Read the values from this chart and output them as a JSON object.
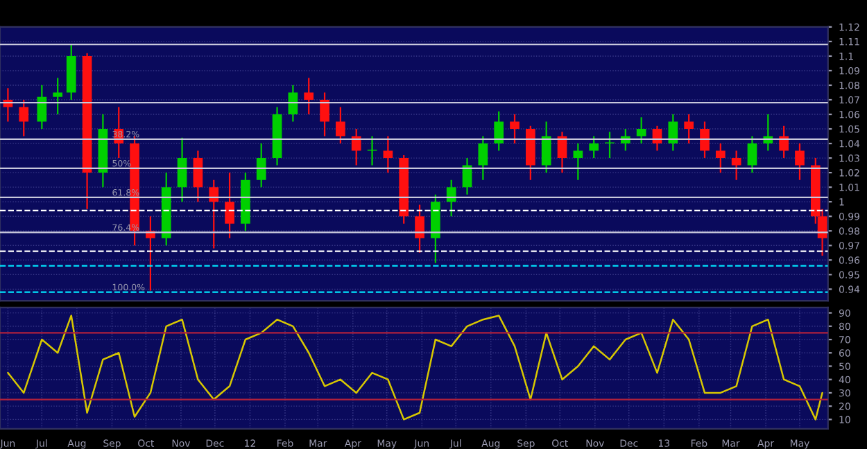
{
  "chart_data": [
    {
      "type": "candlestick",
      "x": [
        "2011-06-01",
        "2011-06-15",
        "2011-07-01",
        "2011-07-15",
        "2011-07-27",
        "2011-08-10",
        "2011-08-24",
        "2011-09-07",
        "2011-09-21",
        "2011-10-05",
        "2011-10-19",
        "2011-11-02",
        "2011-11-16",
        "2011-11-30",
        "2011-12-14",
        "2011-12-28",
        "2012-01-11",
        "2012-01-25",
        "2012-02-08",
        "2012-02-22",
        "2012-03-07",
        "2012-03-21",
        "2012-04-04",
        "2012-04-18",
        "2012-05-02",
        "2012-05-16",
        "2012-05-30",
        "2012-06-13",
        "2012-06-27",
        "2012-07-11",
        "2012-07-25",
        "2012-08-08",
        "2012-08-22",
        "2012-09-05",
        "2012-09-19",
        "2012-10-03",
        "2012-10-17",
        "2012-10-31",
        "2012-11-14",
        "2012-11-28",
        "2012-12-12",
        "2012-12-26",
        "2013-01-09",
        "2013-01-23",
        "2013-02-06",
        "2013-02-20",
        "2013-03-06",
        "2013-03-20",
        "2013-04-03",
        "2013-04-17",
        "2013-05-01",
        "2013-05-15",
        "2013-05-21"
      ],
      "ohlc": [
        [
          1.07,
          1.078,
          1.055,
          1.065
        ],
        [
          1.065,
          1.07,
          1.045,
          1.055
        ],
        [
          1.055,
          1.08,
          1.05,
          1.072
        ],
        [
          1.072,
          1.085,
          1.06,
          1.075
        ],
        [
          1.075,
          1.108,
          1.07,
          1.1
        ],
        [
          1.1,
          1.102,
          0.995,
          1.02
        ],
        [
          1.02,
          1.06,
          1.01,
          1.05
        ],
        [
          1.05,
          1.065,
          1.03,
          1.04
        ],
        [
          1.04,
          1.045,
          0.97,
          0.98
        ],
        [
          0.98,
          0.99,
          0.939,
          0.975
        ],
        [
          0.975,
          1.02,
          0.97,
          1.01
        ],
        [
          1.01,
          1.044,
          1.0,
          1.03
        ],
        [
          1.03,
          1.035,
          1.0,
          1.01
        ],
        [
          1.01,
          1.015,
          0.968,
          1.0
        ],
        [
          1.0,
          1.02,
          0.975,
          0.985
        ],
        [
          0.985,
          1.02,
          0.98,
          1.015
        ],
        [
          1.015,
          1.04,
          1.01,
          1.03
        ],
        [
          1.03,
          1.065,
          1.025,
          1.06
        ],
        [
          1.06,
          1.08,
          1.055,
          1.075
        ],
        [
          1.075,
          1.085,
          1.06,
          1.07
        ],
        [
          1.07,
          1.075,
          1.045,
          1.055
        ],
        [
          1.055,
          1.065,
          1.04,
          1.045
        ],
        [
          1.045,
          1.05,
          1.025,
          1.035
        ],
        [
          1.035,
          1.045,
          1.025,
          1.035
        ],
        [
          1.035,
          1.045,
          1.02,
          1.03
        ],
        [
          1.03,
          1.032,
          0.985,
          0.99
        ],
        [
          0.99,
          0.998,
          0.965,
          0.975
        ],
        [
          0.975,
          1.005,
          0.958,
          1.0
        ],
        [
          1.0,
          1.015,
          0.99,
          1.01
        ],
        [
          1.01,
          1.03,
          1.005,
          1.025
        ],
        [
          1.025,
          1.045,
          1.015,
          1.04
        ],
        [
          1.04,
          1.062,
          1.035,
          1.055
        ],
        [
          1.055,
          1.06,
          1.04,
          1.05
        ],
        [
          1.05,
          1.052,
          1.015,
          1.025
        ],
        [
          1.025,
          1.055,
          1.02,
          1.045
        ],
        [
          1.045,
          1.048,
          1.02,
          1.03
        ],
        [
          1.03,
          1.04,
          1.015,
          1.035
        ],
        [
          1.035,
          1.045,
          1.03,
          1.04
        ],
        [
          1.04,
          1.048,
          1.03,
          1.04
        ],
        [
          1.04,
          1.05,
          1.035,
          1.045
        ],
        [
          1.045,
          1.058,
          1.04,
          1.05
        ],
        [
          1.05,
          1.052,
          1.035,
          1.04
        ],
        [
          1.04,
          1.06,
          1.035,
          1.055
        ],
        [
          1.055,
          1.06,
          1.04,
          1.05
        ],
        [
          1.05,
          1.055,
          1.03,
          1.035
        ],
        [
          1.035,
          1.04,
          1.02,
          1.03
        ],
        [
          1.03,
          1.035,
          1.015,
          1.025
        ],
        [
          1.025,
          1.045,
          1.02,
          1.04
        ],
        [
          1.04,
          1.06,
          1.035,
          1.045
        ],
        [
          1.045,
          1.052,
          1.03,
          1.035
        ],
        [
          1.035,
          1.04,
          1.015,
          1.025
        ],
        [
          1.025,
          1.03,
          0.985,
          0.99
        ],
        [
          0.99,
          0.995,
          0.963,
          0.975
        ]
      ],
      "xlim": [
        "2011-05-25",
        "2013-05-26"
      ],
      "ylim": [
        0.932,
        1.12
      ],
      "yticks": [
        0.94,
        0.95,
        0.96,
        0.97,
        0.98,
        0.99,
        1,
        1.01,
        1.02,
        1.03,
        1.04,
        1.05,
        1.06,
        1.07,
        1.08,
        1.09,
        1.1,
        1.11,
        1.12
      ],
      "tick_labels": "y",
      "grid": true,
      "ref_lines": [
        {
          "axis": "y",
          "value": 1.108,
          "color": "#c8c8dc",
          "line_style": "solid"
        },
        {
          "axis": "y",
          "value": 1.068,
          "color": "#c8c8dc",
          "line_style": "solid"
        },
        {
          "axis": "y",
          "value": 1.043,
          "color": "#c8c8dc",
          "line_style": "solid"
        },
        {
          "axis": "y",
          "value": 1.023,
          "color": "#c8c8dc",
          "line_style": "solid"
        },
        {
          "axis": "y",
          "value": 1.003,
          "color": "#c8c8dc",
          "line_style": "solid"
        },
        {
          "axis": "y",
          "value": 0.979,
          "color": "#c8c8dc",
          "line_style": "solid"
        },
        {
          "axis": "y",
          "value": 0.994,
          "color": "#ffffff",
          "line_style": "dashed"
        },
        {
          "axis": "y",
          "value": 0.966,
          "color": "#ffffff",
          "line_style": "dashed"
        },
        {
          "axis": "y",
          "value": 0.956,
          "color": "#00e5ff",
          "line_style": "dashed"
        },
        {
          "axis": "y",
          "value": 0.938,
          "color": "#00e5ff",
          "line_style": "dashed"
        }
      ],
      "annotations": [
        {
          "text": "38.2%",
          "x": "2011-09-01",
          "y": 1.043
        },
        {
          "text": "50%",
          "x": "2011-09-01",
          "y": 1.023
        },
        {
          "text": "61.8%",
          "x": "2011-09-01",
          "y": 1.003
        },
        {
          "text": "76.4%",
          "x": "2011-09-01",
          "y": 0.979
        },
        {
          "text": "100.0%",
          "x": "2011-09-01",
          "y": 0.938
        }
      ]
    },
    {
      "type": "line",
      "series": [
        {
          "color": "#d8c800",
          "x": [
            "2011-06-01",
            "2011-06-15",
            "2011-07-01",
            "2011-07-15",
            "2011-07-27",
            "2011-08-10",
            "2011-08-24",
            "2011-09-07",
            "2011-09-21",
            "2011-10-05",
            "2011-10-19",
            "2011-11-02",
            "2011-11-16",
            "2011-11-30",
            "2011-12-14",
            "2011-12-28",
            "2012-01-11",
            "2012-01-25",
            "2012-02-08",
            "2012-02-22",
            "2012-03-07",
            "2012-03-21",
            "2012-04-04",
            "2012-04-18",
            "2012-05-02",
            "2012-05-16",
            "2012-05-30",
            "2012-06-13",
            "2012-06-27",
            "2012-07-11",
            "2012-07-25",
            "2012-08-08",
            "2012-08-22",
            "2012-09-05",
            "2012-09-19",
            "2012-10-03",
            "2012-10-17",
            "2012-10-31",
            "2012-11-14",
            "2012-11-28",
            "2012-12-12",
            "2012-12-26",
            "2013-01-09",
            "2013-01-23",
            "2013-02-06",
            "2013-02-20",
            "2013-03-06",
            "2013-03-20",
            "2013-04-03",
            "2013-04-17",
            "2013-05-01",
            "2013-05-15",
            "2013-05-21"
          ],
          "values": [
            45,
            30,
            70,
            60,
            88,
            15,
            55,
            60,
            12,
            30,
            80,
            85,
            40,
            25,
            35,
            70,
            75,
            85,
            80,
            60,
            35,
            40,
            30,
            45,
            40,
            10,
            15,
            70,
            65,
            80,
            85,
            88,
            65,
            25,
            75,
            40,
            50,
            65,
            55,
            70,
            75,
            45,
            85,
            70,
            30,
            30,
            35,
            80,
            85,
            40,
            35,
            10,
            30
          ]
        }
      ],
      "xlim": [
        "2011-05-25",
        "2013-05-26"
      ],
      "xticks": [
        {
          "value": "2011-06-01",
          "label": "Jun"
        },
        {
          "value": "2011-07-01",
          "label": "Jul"
        },
        {
          "value": "2011-08-01",
          "label": "Aug"
        },
        {
          "value": "2011-09-01",
          "label": "Sep"
        },
        {
          "value": "2011-10-01",
          "label": "Oct"
        },
        {
          "value": "2011-11-01",
          "label": "Nov"
        },
        {
          "value": "2011-12-01",
          "label": "Dec"
        },
        {
          "value": "2012-01-01",
          "label": "12"
        },
        {
          "value": "2012-02-01",
          "label": "Feb"
        },
        {
          "value": "2012-03-01",
          "label": "Mar"
        },
        {
          "value": "2012-04-01",
          "label": "Apr"
        },
        {
          "value": "2012-05-01",
          "label": "May"
        },
        {
          "value": "2012-06-01",
          "label": "Jun"
        },
        {
          "value": "2012-07-01",
          "label": "Jul"
        },
        {
          "value": "2012-08-01",
          "label": "Aug"
        },
        {
          "value": "2012-09-01",
          "label": "Sep"
        },
        {
          "value": "2012-10-01",
          "label": "Oct"
        },
        {
          "value": "2012-11-01",
          "label": "Nov"
        },
        {
          "value": "2012-12-01",
          "label": "Dec"
        },
        {
          "value": "2013-01-01",
          "label": "13"
        },
        {
          "value": "2013-02-01",
          "label": "Feb"
        },
        {
          "value": "2013-03-01",
          "label": "Mar"
        },
        {
          "value": "2013-04-01",
          "label": "Apr"
        },
        {
          "value": "2013-05-01",
          "label": "May"
        }
      ],
      "ylim": [
        3,
        94
      ],
      "yticks": [
        10,
        20,
        30,
        40,
        50,
        60,
        70,
        80,
        90
      ],
      "grid": true,
      "ref_lines": [
        {
          "axis": "y",
          "value": 75,
          "color": "#b0203c",
          "line_style": "solid"
        },
        {
          "axis": "y",
          "value": 25,
          "color": "#b0203c",
          "line_style": "solid"
        }
      ]
    }
  ]
}
